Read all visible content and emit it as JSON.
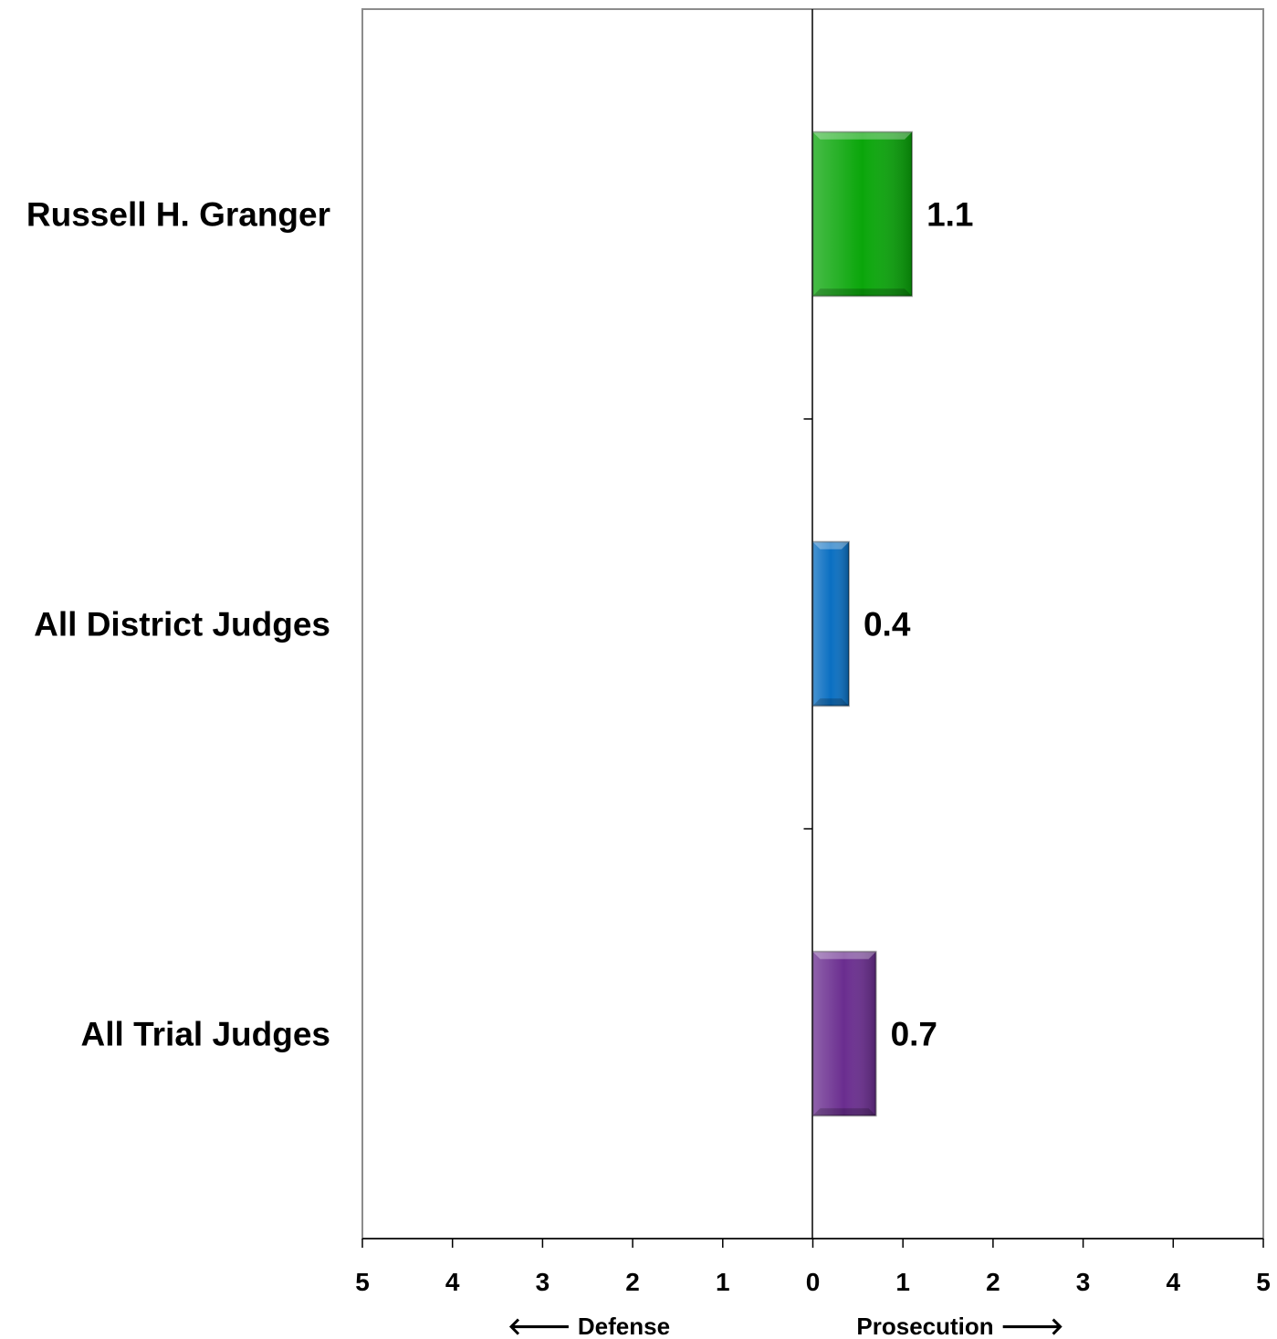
{
  "chart_data": {
    "type": "bar",
    "orientation": "horizontal",
    "categories": [
      "Russell H. Granger",
      "All District Judges",
      "All Trial Judges"
    ],
    "values": [
      1.1,
      0.4,
      0.7
    ],
    "value_labels": [
      "1.1",
      "0.4",
      "0.7"
    ],
    "colors": [
      "#0aa60a",
      "#0a6fc2",
      "#6a2d8f"
    ],
    "xlim": [
      -5,
      5
    ],
    "x_ticks": [
      -5,
      -4,
      -3,
      -2,
      -1,
      0,
      1,
      2,
      3,
      4,
      5
    ],
    "x_tick_labels": [
      "5",
      "4",
      "3",
      "2",
      "1",
      "0",
      "1",
      "2",
      "3",
      "4",
      "5"
    ],
    "direction_labels": {
      "left": "🡐 Defense",
      "right": "Prosecution 🡒"
    },
    "grid": false,
    "legend": "none"
  }
}
